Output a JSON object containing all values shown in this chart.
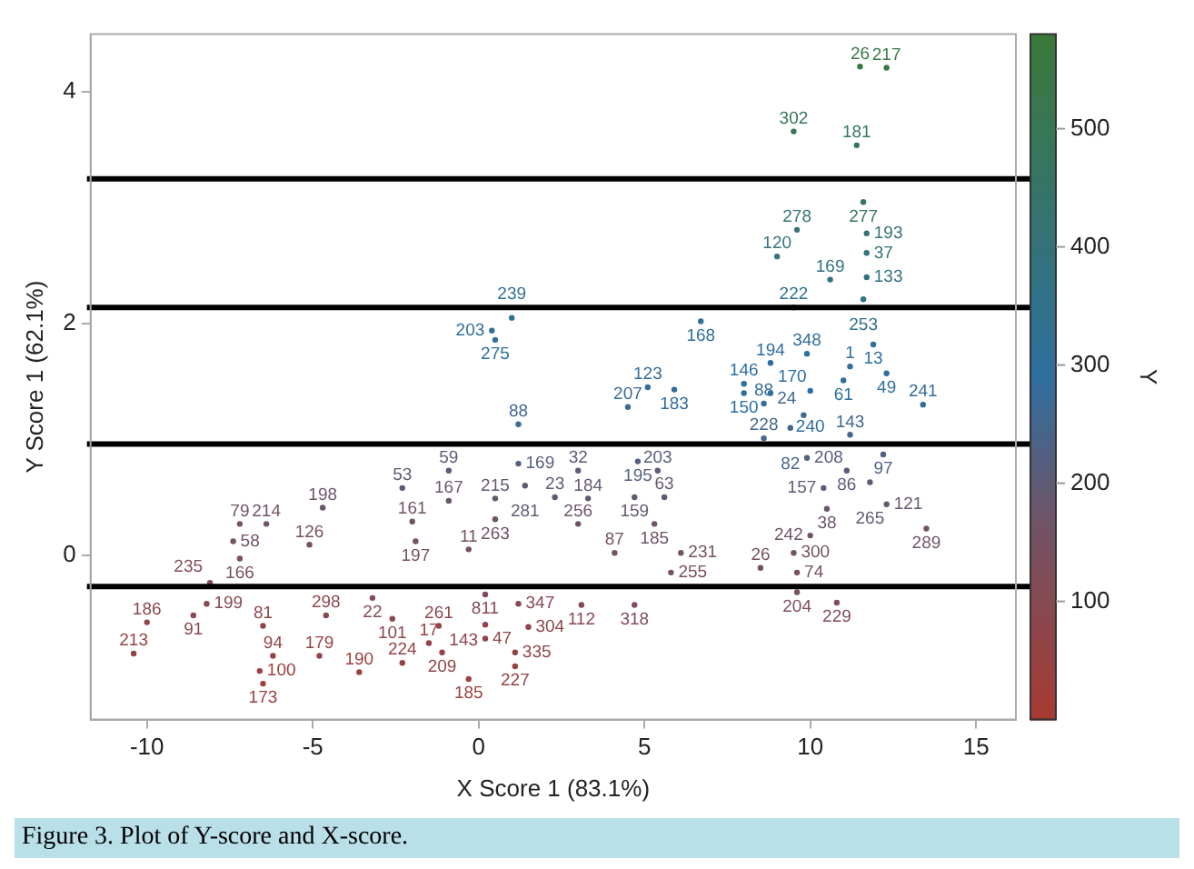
{
  "chart_data": {
    "type": "scatter",
    "xlabel": "X Score 1 (83.1%)",
    "ylabel": "Y Score 1 (62.1%)",
    "clabel": "Y",
    "xlim": [
      -11.7,
      16.2
    ],
    "ylim": [
      -1.42,
      4.5
    ],
    "xticks": [
      -10,
      -5,
      0,
      5,
      10,
      15
    ],
    "yticks": [
      0,
      2,
      4
    ],
    "clim": [
      0,
      580
    ],
    "cticks": [
      100,
      200,
      300,
      400,
      500
    ],
    "grid": false,
    "legend": false,
    "marker": "circle",
    "ref_lines": [
      {
        "axis": "y",
        "value": 3.25,
        "color": "#000000"
      },
      {
        "axis": "y",
        "value": 2.14,
        "color": "#000000"
      },
      {
        "axis": "y",
        "value": 0.96,
        "color": "#000000"
      },
      {
        "axis": "y",
        "value": -0.27,
        "color": "#000000"
      }
    ],
    "annotations": [
      "Figure 3. Plot of Y-score and X-score.",
      {
        "text": "26",
        "x": 11.5,
        "y": 4.22
      },
      {
        "text": "217",
        "x": 12.3,
        "y": 4.21
      },
      {
        "text": "302",
        "x": 9.5,
        "y": 3.66
      },
      {
        "text": "181",
        "x": 11.4,
        "y": 3.54
      },
      {
        "text": "277",
        "x": 11.6,
        "y": 3.05
      },
      {
        "text": "278",
        "x": 9.6,
        "y": 2.81
      },
      {
        "text": "193",
        "x": 11.7,
        "y": 2.78
      },
      {
        "text": "120",
        "x": 9.0,
        "y": 2.58
      },
      {
        "text": "37",
        "x": 11.7,
        "y": 2.61
      },
      {
        "text": "169",
        "x": 10.6,
        "y": 2.38
      },
      {
        "text": "133",
        "x": 11.7,
        "y": 2.4
      },
      {
        "text": "253",
        "x": 11.6,
        "y": 2.21
      },
      {
        "text": "222",
        "x": 9.5,
        "y": 2.14
      },
      {
        "text": "168",
        "x": 6.7,
        "y": 2.02
      },
      {
        "text": "13",
        "x": 11.9,
        "y": 1.82
      },
      {
        "text": "348",
        "x": 9.9,
        "y": 1.74
      },
      {
        "text": "194",
        "x": 8.8,
        "y": 1.66
      },
      {
        "text": "1",
        "x": 11.2,
        "y": 1.63
      },
      {
        "text": "49",
        "x": 12.3,
        "y": 1.57
      },
      {
        "text": "61",
        "x": 11.0,
        "y": 1.51
      },
      {
        "text": "146",
        "x": 8.0,
        "y": 1.48
      },
      {
        "text": "150",
        "x": 8.0,
        "y": 1.4
      },
      {
        "text": "170",
        "x": 8.8,
        "y": 1.4
      },
      {
        "text": "88",
        "x": 8.6,
        "y": 1.31
      },
      {
        "text": "240",
        "x": 10.0,
        "y": 1.42
      },
      {
        "text": "123",
        "x": 5.1,
        "y": 1.45
      },
      {
        "text": "183",
        "x": 5.9,
        "y": 1.43
      },
      {
        "text": "207",
        "x": 4.5,
        "y": 1.28
      },
      {
        "text": "241",
        "x": 13.4,
        "y": 1.3
      },
      {
        "text": "24",
        "x": 9.8,
        "y": 1.21
      },
      {
        "text": "82",
        "x": 9.4,
        "y": 1.1
      },
      {
        "text": "228",
        "x": 8.6,
        "y": 1.01
      },
      {
        "text": "143",
        "x": 11.2,
        "y": 1.04
      },
      {
        "text": "97",
        "x": 12.2,
        "y": 0.87
      },
      {
        "text": "195",
        "x": 4.8,
        "y": 0.81
      },
      {
        "text": "203",
        "x": 5.4,
        "y": 0.73
      },
      {
        "text": "208",
        "x": 9.9,
        "y": 0.84
      },
      {
        "text": "86",
        "x": 11.1,
        "y": 0.73
      },
      {
        "text": "265",
        "x": 11.8,
        "y": 0.63
      },
      {
        "text": "157",
        "x": 10.4,
        "y": 0.58
      },
      {
        "text": "159",
        "x": 4.7,
        "y": 0.5
      },
      {
        "text": "63",
        "x": 5.6,
        "y": 0.5
      },
      {
        "text": "121",
        "x": 12.3,
        "y": 0.44
      },
      {
        "text": "38",
        "x": 10.5,
        "y": 0.4
      },
      {
        "text": "289",
        "x": 13.5,
        "y": 0.23
      },
      {
        "text": "242",
        "x": 10.0,
        "y": 0.17
      },
      {
        "text": "185",
        "x": 5.3,
        "y": 0.27
      },
      {
        "text": "231",
        "x": 6.1,
        "y": 0.02
      },
      {
        "text": "87",
        "x": 4.1,
        "y": 0.02
      },
      {
        "text": "300",
        "x": 9.5,
        "y": 0.02
      },
      {
        "text": "26",
        "x": 8.5,
        "y": -0.11
      },
      {
        "text": "74",
        "x": 9.6,
        "y": -0.15
      },
      {
        "text": "255",
        "x": 5.8,
        "y": -0.15
      },
      {
        "text": "204",
        "x": 9.6,
        "y": -0.32
      },
      {
        "text": "229",
        "x": 10.8,
        "y": -0.41
      },
      {
        "text": "318",
        "x": 4.7,
        "y": -0.43
      },
      {
        "text": "239",
        "x": 1.0,
        "y": 2.05
      },
      {
        "text": "203",
        "x": 0.4,
        "y": 1.94
      },
      {
        "text": "275",
        "x": 0.5,
        "y": 1.86
      },
      {
        "text": "88",
        "x": 1.2,
        "y": 1.13
      },
      {
        "text": "59",
        "x": -0.9,
        "y": 0.73
      },
      {
        "text": "53",
        "x": -2.3,
        "y": 0.58
      },
      {
        "text": "169",
        "x": 1.2,
        "y": 0.79
      },
      {
        "text": "32",
        "x": 3.0,
        "y": 0.73
      },
      {
        "text": "23",
        "x": 2.3,
        "y": 0.5
      },
      {
        "text": "184",
        "x": 3.3,
        "y": 0.49
      },
      {
        "text": "167",
        "x": -0.9,
        "y": 0.47
      },
      {
        "text": "215",
        "x": 0.5,
        "y": 0.49
      },
      {
        "text": "281",
        "x": 1.4,
        "y": 0.6
      },
      {
        "text": "198",
        "x": -4.7,
        "y": 0.41
      },
      {
        "text": "79",
        "x": -7.2,
        "y": 0.27
      },
      {
        "text": "214",
        "x": -6.4,
        "y": 0.27
      },
      {
        "text": "58",
        "x": -7.4,
        "y": 0.12
      },
      {
        "text": "161",
        "x": -2.0,
        "y": 0.29
      },
      {
        "text": "263",
        "x": 0.5,
        "y": 0.31
      },
      {
        "text": "197",
        "x": -1.9,
        "y": 0.12
      },
      {
        "text": "11",
        "x": -0.3,
        "y": 0.05
      },
      {
        "text": "126",
        "x": -5.1,
        "y": 0.09
      },
      {
        "text": "256",
        "x": 3.0,
        "y": 0.27
      },
      {
        "text": "166",
        "x": -7.2,
        "y": -0.03
      },
      {
        "text": "235",
        "x": -8.1,
        "y": -0.24
      },
      {
        "text": "199",
        "x": -8.2,
        "y": -0.42
      },
      {
        "text": "91",
        "x": -8.6,
        "y": -0.52
      },
      {
        "text": "298",
        "x": -4.6,
        "y": -0.52
      },
      {
        "text": "22",
        "x": -3.2,
        "y": -0.37
      },
      {
        "text": "101",
        "x": -2.6,
        "y": -0.55
      },
      {
        "text": "261",
        "x": -1.2,
        "y": -0.61
      },
      {
        "text": "347",
        "x": 1.2,
        "y": -0.42
      },
      {
        "text": "112",
        "x": 3.1,
        "y": -0.43
      },
      {
        "text": "811",
        "x": 0.2,
        "y": -0.34
      },
      {
        "text": "143",
        "x": 0.2,
        "y": -0.6
      },
      {
        "text": "304",
        "x": 1.5,
        "y": -0.62
      },
      {
        "text": "47",
        "x": 0.2,
        "y": -0.72
      },
      {
        "text": "209",
        "x": -1.1,
        "y": -0.84
      },
      {
        "text": "17",
        "x": -1.5,
        "y": -0.76
      },
      {
        "text": "224",
        "x": -2.3,
        "y": -0.93
      },
      {
        "text": "335",
        "x": 1.1,
        "y": -0.84
      },
      {
        "text": "227",
        "x": 1.1,
        "y": -0.96
      },
      {
        "text": "185",
        "x": -0.3,
        "y": -1.07
      },
      {
        "text": "190",
        "x": -3.6,
        "y": -1.01
      },
      {
        "text": "213",
        "x": -10.4,
        "y": -0.85
      },
      {
        "text": "186",
        "x": -10.0,
        "y": -0.58
      },
      {
        "text": "81",
        "x": -6.5,
        "y": -0.61
      },
      {
        "text": "94",
        "x": -6.2,
        "y": -0.87
      },
      {
        "text": "173",
        "x": -6.5,
        "y": -1.11
      },
      {
        "text": "100",
        "x": -6.6,
        "y": -1.0
      },
      {
        "text": "179",
        "x": -4.8,
        "y": -0.87
      }
    ],
    "series": [
      {
        "x": [
          11.5,
          12.3,
          9.5,
          11.4,
          11.6,
          9.6,
          11.7,
          9.0,
          11.7,
          10.6,
          11.7,
          11.6,
          9.5,
          6.7,
          11.9,
          9.9,
          8.8,
          11.2,
          12.3,
          11.0,
          8.0,
          8.0,
          8.8,
          8.6,
          10.0,
          5.1,
          5.9,
          4.5,
          13.4,
          9.8,
          9.4,
          8.6,
          11.2,
          12.2,
          4.8,
          5.4,
          9.9,
          11.1,
          11.8,
          10.4,
          4.7,
          5.6,
          12.3,
          10.5,
          13.5,
          10.0,
          5.3,
          6.1,
          4.1,
          9.5,
          8.5,
          9.6,
          5.8,
          9.6,
          10.8,
          4.7,
          1.0,
          0.4,
          0.5,
          1.2,
          -0.9,
          -2.3,
          1.2,
          3.0,
          2.3,
          3.3,
          -0.9,
          0.5,
          1.4,
          -4.7,
          -7.2,
          -6.4,
          -7.4,
          -2.0,
          0.5,
          -1.9,
          -0.3,
          -5.1,
          3.0,
          -7.2,
          -8.1,
          -8.2,
          -8.6,
          -4.6,
          -3.2,
          -2.6,
          -1.2,
          1.2,
          3.1,
          0.2,
          0.2,
          1.5,
          0.2,
          -1.1,
          -1.5,
          -2.3,
          1.1,
          1.1,
          -0.3,
          -3.6,
          -10.4,
          -10.0,
          -6.5,
          -6.2,
          -6.5,
          -6.6,
          -4.8
        ],
        "values": [
          4.22,
          4.21,
          3.66,
          3.54,
          3.05,
          2.81,
          2.78,
          2.58,
          2.61,
          2.38,
          2.4,
          2.21,
          2.14,
          2.02,
          1.82,
          1.74,
          1.66,
          1.63,
          1.57,
          1.51,
          1.48,
          1.4,
          1.4,
          1.31,
          1.42,
          1.45,
          1.43,
          1.28,
          1.3,
          1.21,
          1.1,
          1.01,
          1.04,
          0.87,
          0.81,
          0.73,
          0.84,
          0.73,
          0.63,
          0.58,
          0.5,
          0.5,
          0.44,
          0.4,
          0.23,
          0.17,
          0.27,
          0.02,
          0.02,
          0.02,
          -0.11,
          -0.15,
          -0.15,
          -0.32,
          -0.41,
          -0.43,
          2.05,
          1.94,
          1.86,
          1.13,
          0.73,
          0.58,
          0.79,
          0.73,
          0.5,
          0.49,
          0.47,
          0.49,
          0.6,
          0.41,
          0.27,
          0.27,
          0.12,
          0.29,
          0.31,
          0.12,
          0.05,
          0.09,
          0.27,
          -0.03,
          -0.24,
          -0.42,
          -0.52,
          -0.52,
          -0.37,
          -0.55,
          -0.61,
          -0.42,
          -0.43,
          -0.34,
          -0.6,
          -0.62,
          -0.72,
          -0.84,
          -0.76,
          -0.93,
          -0.84,
          -0.96,
          -1.07,
          -1.01,
          -0.85,
          -0.58,
          -0.61,
          -0.87,
          -1.11,
          -1.0,
          -0.87
        ],
        "cvalues": [
          560,
          560,
          500,
          490,
          460,
          410,
          420,
          400,
          400,
          380,
          380,
          360,
          340,
          320,
          300,
          300,
          300,
          300,
          300,
          300,
          290,
          290,
          290,
          280,
          290,
          280,
          280,
          270,
          280,
          260,
          250,
          250,
          250,
          230,
          220,
          210,
          220,
          210,
          200,
          200,
          190,
          190,
          190,
          180,
          170,
          170,
          170,
          160,
          160,
          160,
          150,
          150,
          150,
          130,
          120,
          120,
          320,
          310,
          310,
          260,
          210,
          200,
          220,
          210,
          190,
          190,
          180,
          190,
          200,
          180,
          170,
          170,
          160,
          170,
          170,
          160,
          150,
          150,
          170,
          140,
          120,
          100,
          90,
          90,
          110,
          90,
          80,
          100,
          100,
          110,
          80,
          80,
          70,
          60,
          60,
          50,
          60,
          50,
          40,
          40,
          60,
          80,
          80,
          60,
          30,
          40,
          60
        ]
      }
    ]
  }
}
